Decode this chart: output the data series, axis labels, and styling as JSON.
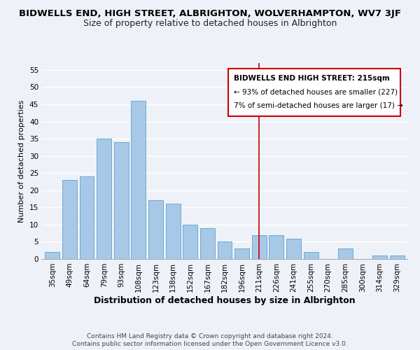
{
  "title": "BIDWELLS END, HIGH STREET, ALBRIGHTON, WOLVERHAMPTON, WV7 3JF",
  "subtitle": "Size of property relative to detached houses in Albrighton",
  "xlabel": "Distribution of detached houses by size in Albrighton",
  "ylabel": "Number of detached properties",
  "bar_labels": [
    "35sqm",
    "49sqm",
    "64sqm",
    "79sqm",
    "93sqm",
    "108sqm",
    "123sqm",
    "138sqm",
    "152sqm",
    "167sqm",
    "182sqm",
    "196sqm",
    "211sqm",
    "226sqm",
    "241sqm",
    "255sqm",
    "270sqm",
    "285sqm",
    "300sqm",
    "314sqm",
    "329sqm"
  ],
  "bar_values": [
    2,
    23,
    24,
    35,
    34,
    46,
    17,
    16,
    10,
    9,
    5,
    3,
    7,
    7,
    6,
    2,
    0,
    3,
    0,
    1,
    1
  ],
  "bar_color": "#a8c8e8",
  "bar_edge_color": "#6aaad4",
  "vline_x": 12,
  "vline_color": "#cc0000",
  "ylim": [
    0,
    57
  ],
  "yticks": [
    0,
    5,
    10,
    15,
    20,
    25,
    30,
    35,
    40,
    45,
    50,
    55
  ],
  "annotation_title": "BIDWELLS END HIGH STREET: 215sqm",
  "annotation_line1": "← 93% of detached houses are smaller (227)",
  "annotation_line2": "7% of semi-detached houses are larger (17) →",
  "annotation_box_color": "#ffffff",
  "annotation_border_color": "#cc0000",
  "footer1": "Contains HM Land Registry data © Crown copyright and database right 2024.",
  "footer2": "Contains public sector information licensed under the Open Government Licence v3.0.",
  "bg_color": "#eef2f8",
  "plot_bg_color": "#eef2f8",
  "title_fontsize": 9.5,
  "subtitle_fontsize": 9,
  "xlabel_fontsize": 9,
  "ylabel_fontsize": 8,
  "tick_fontsize": 7.5,
  "footer_fontsize": 6.5,
  "ann_fontsize": 7.5
}
